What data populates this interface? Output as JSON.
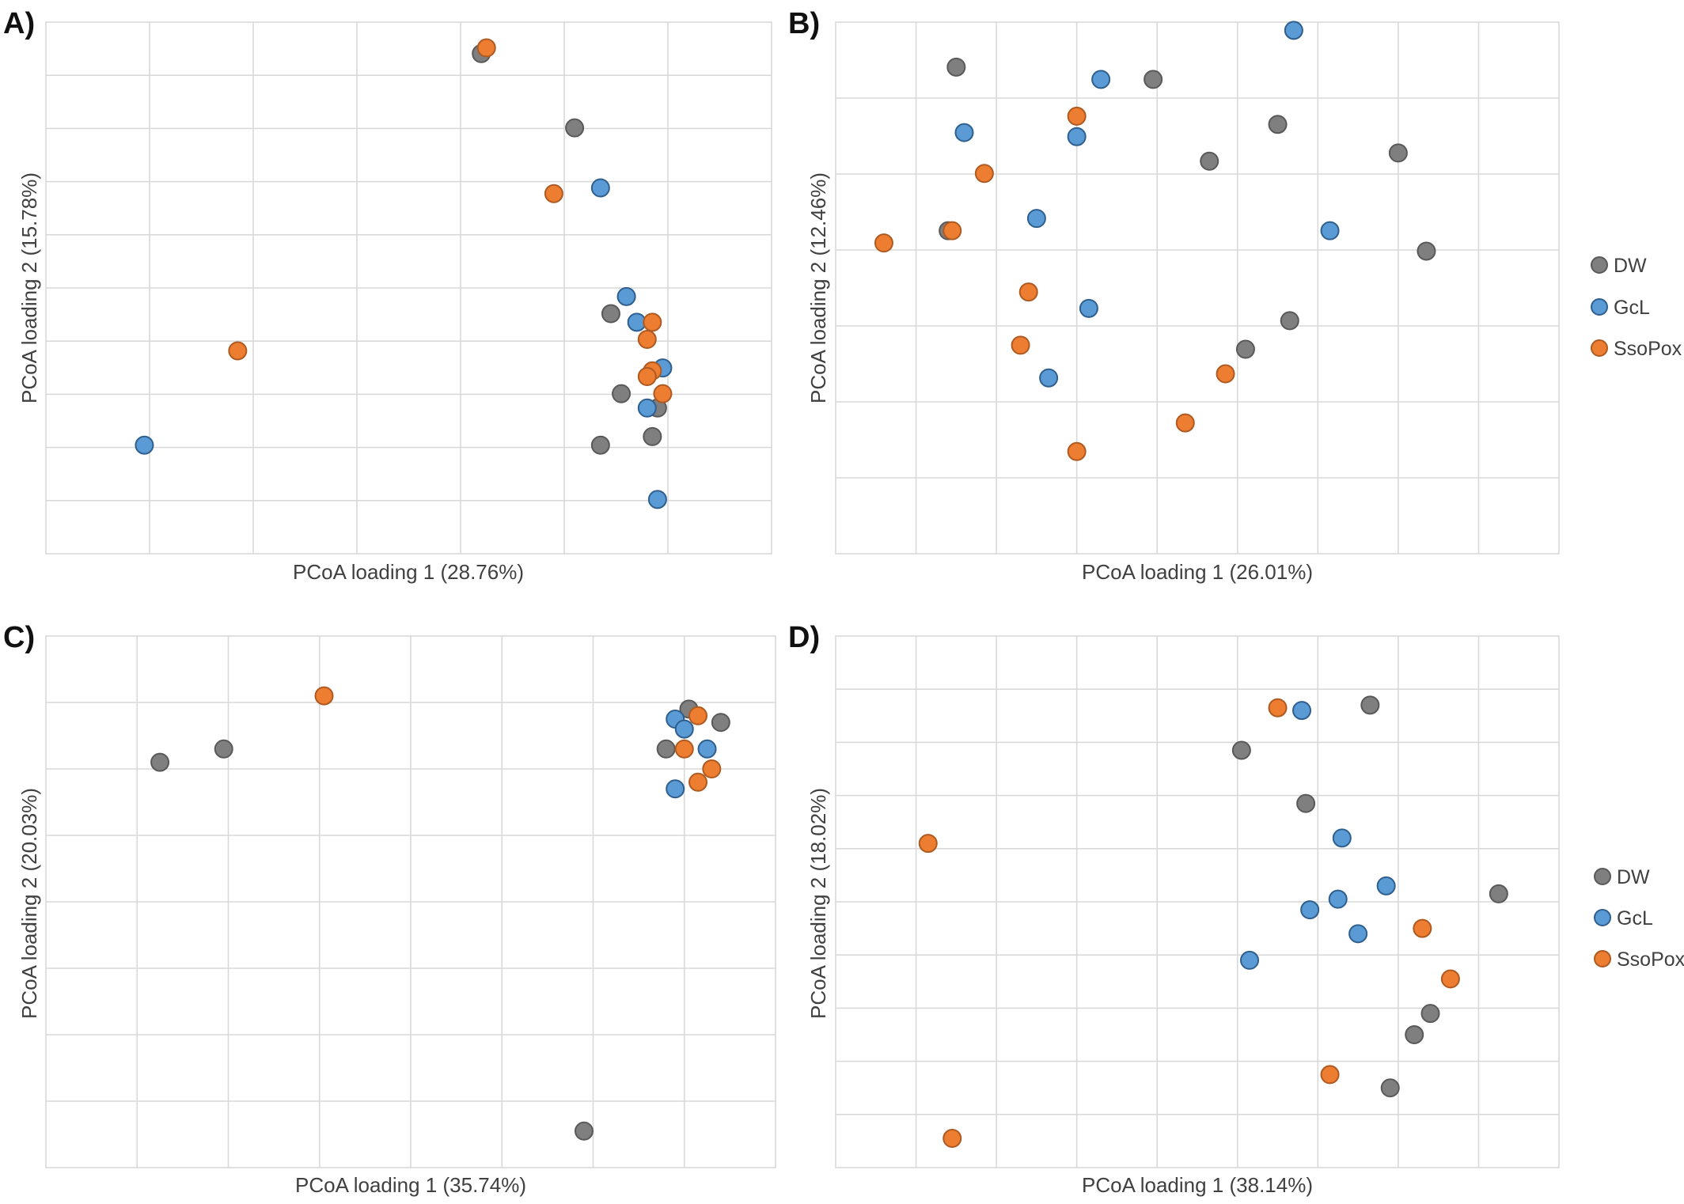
{
  "colors": {
    "DW": "#7f7f7f",
    "GcL": "#5b9bd5",
    "SsoPox": "#ed7d31",
    "DW_edge": "#595959",
    "GcL_edge": "#2e5f8e",
    "SsoPox_edge": "#ae5a21",
    "grid": "#d9d9d9"
  },
  "legend_top": {
    "items": [
      "DW",
      "GcL",
      "SsoPox"
    ]
  },
  "legend_bottom": {
    "items": [
      "DW",
      "GcL",
      "SsoPox"
    ]
  },
  "chart_data": [
    {
      "panel": "A)",
      "type": "scatter",
      "xlabel": "PCoA loading 1 (28.76%)",
      "ylabel": "PCoA loading 2 (15.78%)",
      "grid": true,
      "xlim": [
        0,
        7
      ],
      "ylim": [
        0,
        9.3
      ],
      "series": [
        {
          "name": "DW",
          "points": [
            [
              4.2,
              8.75
            ],
            [
              5.1,
              7.45
            ],
            [
              5.45,
              4.2
            ],
            [
              5.55,
              2.8
            ],
            [
              5.9,
              2.55
            ],
            [
              5.35,
              1.9
            ],
            [
              5.85,
              2.05
            ]
          ]
        },
        {
          "name": "GcL",
          "points": [
            [
              0.95,
              1.9
            ],
            [
              5.35,
              6.4
            ],
            [
              5.6,
              4.5
            ],
            [
              5.7,
              4.05
            ],
            [
              5.95,
              3.25
            ],
            [
              5.8,
              2.55
            ],
            [
              5.9,
              0.95
            ]
          ]
        },
        {
          "name": "SsoPox",
          "points": [
            [
              4.25,
              8.85
            ],
            [
              4.9,
              6.3
            ],
            [
              1.85,
              3.55
            ],
            [
              5.85,
              4.05
            ],
            [
              5.8,
              3.75
            ],
            [
              5.85,
              3.2
            ],
            [
              5.8,
              3.1
            ],
            [
              5.95,
              2.8
            ]
          ]
        }
      ]
    },
    {
      "panel": "B)",
      "type": "scatter",
      "xlabel": "PCoA loading 1 (26.01%)",
      "ylabel": "PCoA loading 2 (12.46%)",
      "grid": true,
      "xlim": [
        0,
        9
      ],
      "ylim": [
        0,
        6.5
      ],
      "series": [
        {
          "name": "DW",
          "points": [
            [
              1.5,
              5.95
            ],
            [
              3.95,
              5.8
            ],
            [
              4.65,
              4.8
            ],
            [
              5.5,
              5.25
            ],
            [
              7.0,
              4.9
            ],
            [
              1.4,
              3.95
            ],
            [
              7.35,
              3.7
            ],
            [
              5.65,
              2.85
            ],
            [
              5.1,
              2.5
            ]
          ]
        },
        {
          "name": "GcL",
          "points": [
            [
              5.7,
              6.4
            ],
            [
              3.3,
              5.8
            ],
            [
              1.6,
              5.15
            ],
            [
              3.0,
              5.1
            ],
            [
              2.5,
              4.1
            ],
            [
              6.15,
              3.95
            ],
            [
              3.15,
              3.0
            ],
            [
              2.65,
              2.15
            ]
          ]
        },
        {
          "name": "SsoPox",
          "points": [
            [
              3.0,
              5.35
            ],
            [
              1.85,
              4.65
            ],
            [
              0.6,
              3.8
            ],
            [
              1.45,
              3.95
            ],
            [
              2.4,
              3.2
            ],
            [
              2.3,
              2.55
            ],
            [
              4.85,
              2.2
            ],
            [
              4.35,
              1.6
            ],
            [
              3.0,
              1.25
            ]
          ]
        }
      ]
    },
    {
      "panel": "C)",
      "type": "scatter",
      "xlabel": "PCoA loading 1 (35.74%)",
      "ylabel": "PCoA loading 2 (20.03%)",
      "grid": true,
      "xlim": [
        0,
        8
      ],
      "ylim": [
        0,
        8
      ],
      "series": [
        {
          "name": "DW",
          "points": [
            [
              1.25,
              6.1
            ],
            [
              1.95,
              6.3
            ],
            [
              7.05,
              6.9
            ],
            [
              7.4,
              6.7
            ],
            [
              6.8,
              6.3
            ],
            [
              5.9,
              0.55
            ]
          ]
        },
        {
          "name": "GcL",
          "points": [
            [
              6.9,
              6.75
            ],
            [
              7.0,
              6.6
            ],
            [
              7.25,
              6.3
            ],
            [
              6.9,
              5.7
            ]
          ]
        },
        {
          "name": "SsoPox",
          "points": [
            [
              3.05,
              7.1
            ],
            [
              7.15,
              6.8
            ],
            [
              7.0,
              6.3
            ],
            [
              7.3,
              6.0
            ],
            [
              7.15,
              5.8
            ]
          ]
        }
      ]
    },
    {
      "panel": "D)",
      "type": "scatter",
      "xlabel": "PCoA loading 1 (38.14%)",
      "ylabel": "PCoA loading 2 (18.02%)",
      "grid": true,
      "xlim": [
        0,
        9
      ],
      "ylim": [
        0,
        10
      ],
      "series": [
        {
          "name": "DW",
          "points": [
            [
              6.65,
              8.7
            ],
            [
              5.05,
              7.85
            ],
            [
              5.85,
              6.85
            ],
            [
              8.25,
              5.15
            ],
            [
              7.4,
              2.9
            ],
            [
              7.2,
              2.5
            ],
            [
              6.9,
              1.5
            ]
          ]
        },
        {
          "name": "GcL",
          "points": [
            [
              5.8,
              8.6
            ],
            [
              6.3,
              6.2
            ],
            [
              6.85,
              5.3
            ],
            [
              6.25,
              5.05
            ],
            [
              5.9,
              4.85
            ],
            [
              6.5,
              4.4
            ],
            [
              5.15,
              3.9
            ]
          ]
        },
        {
          "name": "SsoPox",
          "points": [
            [
              5.5,
              8.65
            ],
            [
              1.15,
              6.1
            ],
            [
              7.3,
              4.5
            ],
            [
              7.65,
              3.55
            ],
            [
              6.15,
              1.75
            ],
            [
              1.45,
              0.55
            ]
          ]
        }
      ]
    }
  ]
}
